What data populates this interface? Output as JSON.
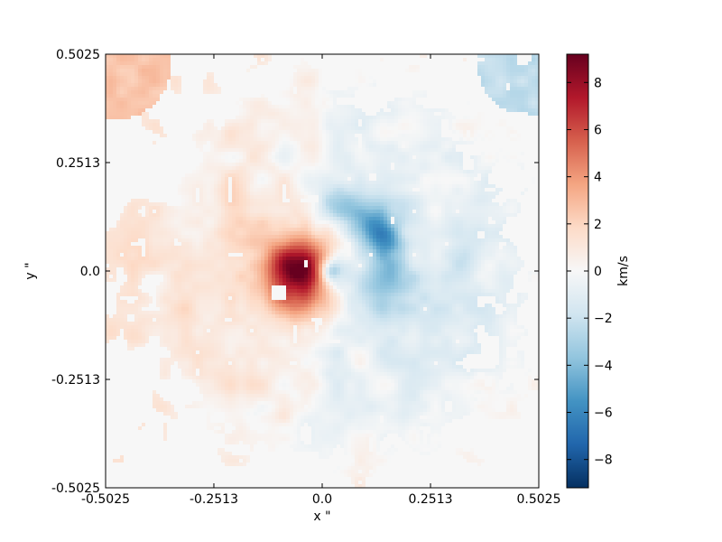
{
  "chart_data": {
    "type": "heatmap",
    "title": "",
    "xlabel": "x \"",
    "ylabel": "y \"",
    "xlim": [
      -0.5025,
      0.5025
    ],
    "ylim": [
      -0.5025,
      0.5025
    ],
    "xticks": [
      -0.5025,
      -0.2513,
      0.0,
      0.2513,
      0.5025
    ],
    "yticks": [
      -0.5025,
      -0.2513,
      0.0,
      0.2513,
      0.5025
    ],
    "xtick_labels": [
      "-0.5025",
      "-0.2513",
      "0.0",
      "0.2513",
      "0.5025"
    ],
    "ytick_labels": [
      "-0.5025",
      "-0.2513",
      "0.0",
      "0.2513",
      "0.5025"
    ],
    "grid": false,
    "colormap": "RdBu_r",
    "colorbar": {
      "label": "km/s",
      "range": [
        -9.2,
        9.2
      ],
      "ticks": [
        -8,
        -6,
        -4,
        -2,
        0,
        2,
        4,
        6,
        8
      ],
      "tick_labels": [
        "−8",
        "−6",
        "−4",
        "−2",
        "0",
        "2",
        "4",
        "6",
        "8"
      ]
    },
    "velocity_field": {
      "background_value": 0,
      "features": [
        {
          "name": "redshifted core",
          "x": -0.05,
          "y": 0.0,
          "peak": 8.5
        },
        {
          "name": "blueshifted ring",
          "x": 0.1,
          "y": 0.08,
          "peak": -6.0
        },
        {
          "name": "redshifted outer wing",
          "x": -0.15,
          "y": 0.0,
          "peak": 3.0
        },
        {
          "name": "blueshifted outer wing",
          "x": 0.15,
          "y": -0.05,
          "peak": -2.0
        },
        {
          "name": "top-left corner patch",
          "x": -0.46,
          "y": 0.45,
          "peak": 2.5
        },
        {
          "name": "top-right corner patch",
          "x": 0.46,
          "y": 0.45,
          "peak": -2.0
        }
      ]
    }
  }
}
